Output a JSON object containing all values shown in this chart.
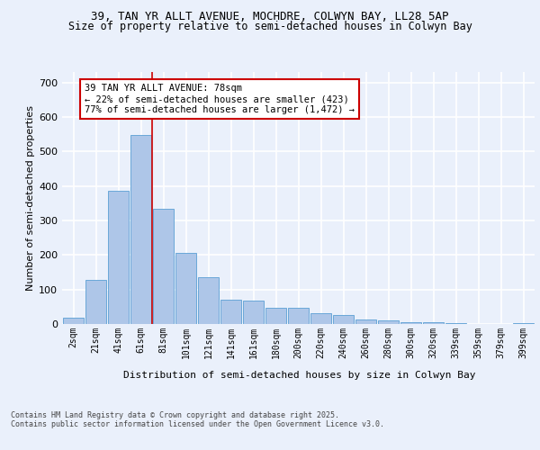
{
  "title_line1": "39, TAN YR ALLT AVENUE, MOCHDRE, COLWYN BAY, LL28 5AP",
  "title_line2": "Size of property relative to semi-detached houses in Colwyn Bay",
  "xlabel": "Distribution of semi-detached houses by size in Colwyn Bay",
  "ylabel": "Number of semi-detached properties",
  "annotation_title": "39 TAN YR ALLT AVENUE: 78sqm",
  "annotation_line2": "← 22% of semi-detached houses are smaller (423)",
  "annotation_line3": "77% of semi-detached houses are larger (1,472) →",
  "footer_line1": "Contains HM Land Registry data © Crown copyright and database right 2025.",
  "footer_line2": "Contains public sector information licensed under the Open Government Licence v3.0.",
  "bar_labels": [
    "2sqm",
    "21sqm",
    "41sqm",
    "61sqm",
    "81sqm",
    "101sqm",
    "121sqm",
    "141sqm",
    "161sqm",
    "180sqm",
    "200sqm",
    "220sqm",
    "240sqm",
    "260sqm",
    "280sqm",
    "300sqm",
    "320sqm",
    "339sqm",
    "359sqm",
    "379sqm",
    "399sqm"
  ],
  "bar_values": [
    18,
    128,
    385,
    548,
    335,
    205,
    135,
    70,
    68,
    48,
    48,
    30,
    25,
    12,
    10,
    6,
    5,
    2,
    1,
    0,
    2
  ],
  "bar_color": "#aec6e8",
  "bar_edge_color": "#5a9fd4",
  "redline_x": 3.5,
  "ylim": [
    0,
    730
  ],
  "yticks": [
    0,
    100,
    200,
    300,
    400,
    500,
    600,
    700
  ],
  "bg_color": "#eaf0fb",
  "plot_bg_color": "#eaf0fb",
  "grid_color": "#ffffff",
  "annotation_box_color": "#ffffff",
  "annotation_box_edge": "#cc0000",
  "redline_color": "#cc0000",
  "figsize": [
    6.0,
    5.0
  ],
  "dpi": 100
}
